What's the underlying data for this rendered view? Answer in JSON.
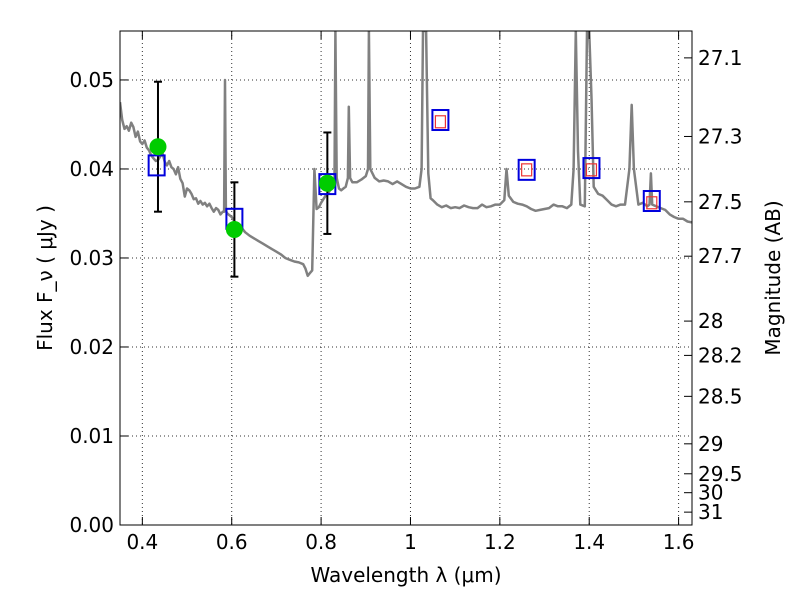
{
  "chart_data": {
    "type": "scatter",
    "xlabel": "Wavelength  λ (μm)",
    "ylabel": "Flux  F_ν  ( μJy )",
    "ylabel_right": "Magnitude (AB)",
    "xlim": [
      0.35,
      1.63
    ],
    "ylim": [
      0.0,
      0.0555
    ],
    "grid": true,
    "x_ticks": [
      {
        "value": 0.4,
        "label": "0.4"
      },
      {
        "value": 0.6,
        "label": "0.6"
      },
      {
        "value": 0.8,
        "label": "0.8"
      },
      {
        "value": 1.0,
        "label": "1"
      },
      {
        "value": 1.2,
        "label": "1.2"
      },
      {
        "value": 1.4,
        "label": "1.4"
      },
      {
        "value": 1.6,
        "label": "1.6"
      }
    ],
    "y_ticks": [
      {
        "value": 0.0,
        "label": "0.00"
      },
      {
        "value": 0.01,
        "label": "0.01"
      },
      {
        "value": 0.02,
        "label": "0.02"
      },
      {
        "value": 0.03,
        "label": "0.03"
      },
      {
        "value": 0.04,
        "label": "0.04"
      },
      {
        "value": 0.05,
        "label": "0.05"
      }
    ],
    "right_ticks": [
      {
        "mag": 27.1,
        "label": "27.1"
      },
      {
        "mag": 27.3,
        "label": "27.3"
      },
      {
        "mag": 27.5,
        "label": "27.5"
      },
      {
        "mag": 27.7,
        "label": "27.7"
      },
      {
        "mag": 28.0,
        "label": "28"
      },
      {
        "mag": 28.2,
        "label": "28.2"
      },
      {
        "mag": 28.5,
        "label": "28.5"
      },
      {
        "mag": 29.0,
        "label": "29"
      },
      {
        "mag": 29.5,
        "label": "29.5"
      },
      {
        "mag": 30.0,
        "label": "30"
      },
      {
        "mag": 31.0,
        "label": "31"
      }
    ],
    "series": [
      {
        "kind": "model_spectrum",
        "color": "#808080",
        "points": [
          [
            0.35,
            0.0475
          ],
          [
            0.355,
            0.0455
          ],
          [
            0.36,
            0.0445
          ],
          [
            0.365,
            0.0448
          ],
          [
            0.37,
            0.0443
          ],
          [
            0.375,
            0.0452
          ],
          [
            0.38,
            0.0447
          ],
          [
            0.385,
            0.0436
          ],
          [
            0.39,
            0.0442
          ],
          [
            0.395,
            0.0431
          ],
          [
            0.4,
            0.0428
          ],
          [
            0.405,
            0.0432
          ],
          [
            0.41,
            0.0424
          ],
          [
            0.415,
            0.0421
          ],
          [
            0.42,
            0.0415
          ],
          [
            0.425,
            0.0412
          ],
          [
            0.43,
            0.0409
          ],
          [
            0.435,
            0.041
          ],
          [
            0.44,
            0.0414
          ],
          [
            0.445,
            0.0418
          ],
          [
            0.45,
            0.0408
          ],
          [
            0.455,
            0.0404
          ],
          [
            0.46,
            0.0409
          ],
          [
            0.465,
            0.0402
          ],
          [
            0.47,
            0.04
          ],
          [
            0.475,
            0.0394
          ],
          [
            0.48,
            0.0402
          ],
          [
            0.485,
            0.0389
          ],
          [
            0.49,
            0.0384
          ],
          [
            0.495,
            0.0369
          ],
          [
            0.5,
            0.0378
          ],
          [
            0.505,
            0.0376
          ],
          [
            0.51,
            0.0372
          ],
          [
            0.515,
            0.0366
          ],
          [
            0.52,
            0.0367
          ],
          [
            0.525,
            0.0361
          ],
          [
            0.53,
            0.0364
          ],
          [
            0.535,
            0.036
          ],
          [
            0.54,
            0.0362
          ],
          [
            0.545,
            0.0358
          ],
          [
            0.55,
            0.0361
          ],
          [
            0.555,
            0.0356
          ],
          [
            0.56,
            0.0352
          ],
          [
            0.565,
            0.0356
          ],
          [
            0.57,
            0.0354
          ],
          [
            0.575,
            0.0349
          ],
          [
            0.58,
            0.0352
          ],
          [
            0.583,
            0.0352
          ],
          [
            0.585,
            0.05
          ],
          [
            0.587,
            0.0353
          ],
          [
            0.59,
            0.035
          ],
          [
            0.6,
            0.0346
          ],
          [
            0.61,
            0.0338
          ],
          [
            0.62,
            0.0335
          ],
          [
            0.63,
            0.0329
          ],
          [
            0.64,
            0.0325
          ],
          [
            0.65,
            0.0322
          ],
          [
            0.66,
            0.0319
          ],
          [
            0.67,
            0.0316
          ],
          [
            0.68,
            0.0313
          ],
          [
            0.69,
            0.031
          ],
          [
            0.7,
            0.0307
          ],
          [
            0.71,
            0.0304
          ],
          [
            0.72,
            0.03
          ],
          [
            0.73,
            0.0298
          ],
          [
            0.74,
            0.0296
          ],
          [
            0.75,
            0.0295
          ],
          [
            0.76,
            0.0293
          ],
          [
            0.765,
            0.0288
          ],
          [
            0.77,
            0.028
          ],
          [
            0.775,
            0.0283
          ],
          [
            0.78,
            0.0286
          ],
          [
            0.785,
            0.04
          ],
          [
            0.79,
            0.0355
          ],
          [
            0.795,
            0.0357
          ],
          [
            0.8,
            0.0362
          ],
          [
            0.81,
            0.037
          ],
          [
            0.815,
            0.0372
          ],
          [
            0.82,
            0.0376
          ],
          [
            0.825,
            0.0378
          ],
          [
            0.83,
            0.039
          ],
          [
            0.832,
            0.0555
          ],
          [
            0.835,
            0.039
          ],
          [
            0.84,
            0.0378
          ],
          [
            0.845,
            0.0376
          ],
          [
            0.85,
            0.0378
          ],
          [
            0.855,
            0.038
          ],
          [
            0.86,
            0.039
          ],
          [
            0.862,
            0.047
          ],
          [
            0.865,
            0.039
          ],
          [
            0.87,
            0.0385
          ],
          [
            0.88,
            0.0385
          ],
          [
            0.89,
            0.0388
          ],
          [
            0.9,
            0.0392
          ],
          [
            0.905,
            0.04
          ],
          [
            0.907,
            0.0555
          ],
          [
            0.91,
            0.04
          ],
          [
            0.92,
            0.039
          ],
          [
            0.93,
            0.0386
          ],
          [
            0.94,
            0.0387
          ],
          [
            0.95,
            0.0386
          ],
          [
            0.96,
            0.0383
          ],
          [
            0.97,
            0.0386
          ],
          [
            0.98,
            0.0383
          ],
          [
            0.99,
            0.038
          ],
          [
            1.0,
            0.0378
          ],
          [
            1.01,
            0.0378
          ],
          [
            1.02,
            0.038
          ],
          [
            1.025,
            0.04
          ],
          [
            1.028,
            0.0555
          ],
          [
            1.035,
            0.0555
          ],
          [
            1.04,
            0.0395
          ],
          [
            1.045,
            0.0367
          ],
          [
            1.05,
            0.0365
          ],
          [
            1.06,
            0.036
          ],
          [
            1.07,
            0.0357
          ],
          [
            1.08,
            0.0359
          ],
          [
            1.09,
            0.0356
          ],
          [
            1.1,
            0.0357
          ],
          [
            1.11,
            0.0356
          ],
          [
            1.12,
            0.0359
          ],
          [
            1.13,
            0.0357
          ],
          [
            1.14,
            0.0356
          ],
          [
            1.15,
            0.0356
          ],
          [
            1.16,
            0.036
          ],
          [
            1.17,
            0.0357
          ],
          [
            1.18,
            0.0358
          ],
          [
            1.19,
            0.036
          ],
          [
            1.2,
            0.036
          ],
          [
            1.21,
            0.0365
          ],
          [
            1.215,
            0.04
          ],
          [
            1.22,
            0.037
          ],
          [
            1.23,
            0.0363
          ],
          [
            1.24,
            0.0361
          ],
          [
            1.25,
            0.036
          ],
          [
            1.26,
            0.0358
          ],
          [
            1.27,
            0.0355
          ],
          [
            1.28,
            0.0353
          ],
          [
            1.29,
            0.0354
          ],
          [
            1.3,
            0.0355
          ],
          [
            1.31,
            0.0356
          ],
          [
            1.32,
            0.036
          ],
          [
            1.33,
            0.0358
          ],
          [
            1.34,
            0.0358
          ],
          [
            1.35,
            0.0356
          ],
          [
            1.36,
            0.036
          ],
          [
            1.365,
            0.04
          ],
          [
            1.37,
            0.0555
          ],
          [
            1.375,
            0.042
          ],
          [
            1.38,
            0.036
          ],
          [
            1.39,
            0.0358
          ],
          [
            1.395,
            0.0555
          ],
          [
            1.4,
            0.0555
          ],
          [
            1.405,
            0.048
          ],
          [
            1.41,
            0.038
          ],
          [
            1.42,
            0.0372
          ],
          [
            1.43,
            0.037
          ],
          [
            1.44,
            0.0365
          ],
          [
            1.45,
            0.036
          ],
          [
            1.46,
            0.0358
          ],
          [
            1.47,
            0.036
          ],
          [
            1.48,
            0.036
          ],
          [
            1.49,
            0.04
          ],
          [
            1.495,
            0.0472
          ],
          [
            1.5,
            0.04
          ],
          [
            1.51,
            0.036
          ],
          [
            1.52,
            0.0362
          ],
          [
            1.53,
            0.0358
          ],
          [
            1.535,
            0.036
          ],
          [
            1.538,
            0.0395
          ],
          [
            1.541,
            0.036
          ],
          [
            1.55,
            0.0358
          ],
          [
            1.56,
            0.0356
          ],
          [
            1.57,
            0.0354
          ],
          [
            1.58,
            0.0349
          ],
          [
            1.59,
            0.0346
          ],
          [
            1.6,
            0.0344
          ],
          [
            1.61,
            0.0344
          ],
          [
            1.62,
            0.0341
          ],
          [
            1.63,
            0.034
          ]
        ]
      },
      {
        "kind": "observed_flux",
        "marker_color": "#00cc00",
        "errorbar_color": "#000000",
        "points": [
          {
            "x": 0.435,
            "y": 0.0425,
            "err": 0.0073
          },
          {
            "x": 0.606,
            "y": 0.0332,
            "err": 0.0053
          },
          {
            "x": 0.814,
            "y": 0.0384,
            "err": 0.0057
          }
        ]
      },
      {
        "kind": "model_flux_blue_squares",
        "color": "#0000dd",
        "points": [
          [
            0.432,
            0.0404
          ],
          [
            0.606,
            0.0344
          ],
          [
            0.814,
            0.0383
          ],
          [
            1.067,
            0.0455
          ],
          [
            1.26,
            0.0399
          ],
          [
            1.405,
            0.0401
          ],
          [
            1.54,
            0.0364
          ]
        ]
      },
      {
        "kind": "model_flux_red_squares",
        "color": "#ee3333",
        "points": [
          [
            1.067,
            0.0453
          ],
          [
            1.26,
            0.0399
          ],
          [
            1.405,
            0.0399
          ],
          [
            1.54,
            0.0362
          ]
        ]
      }
    ]
  }
}
